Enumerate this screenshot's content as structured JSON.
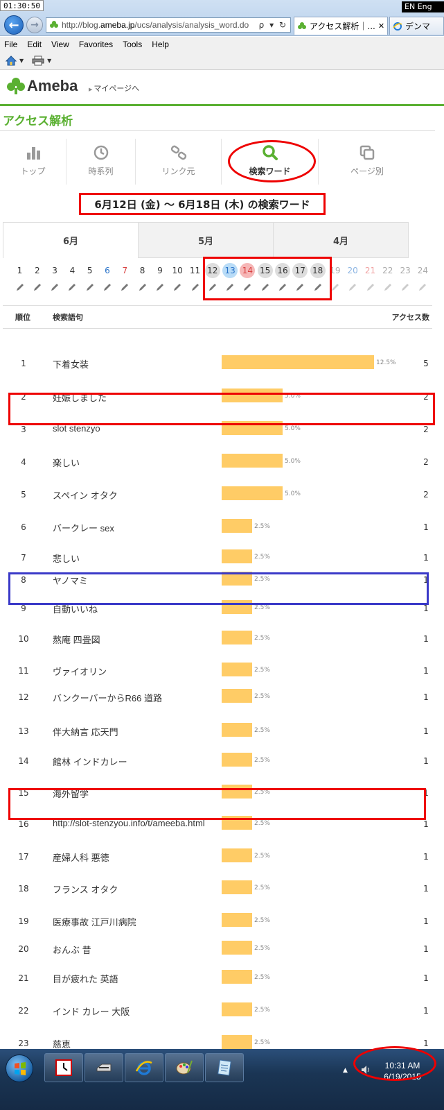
{
  "overlay": {
    "clock": "01:30:50",
    "language": "EN Eng"
  },
  "browser": {
    "address_prefix": "http://blog.",
    "address_domain": "ameba.jp",
    "address_path": "/ucs/analysis/analysis_word.do",
    "address_tools": "ρ ▾ ↻",
    "active_tab_label": "アクセス解析｜...",
    "active_tab_close": "✕",
    "second_tab_label": "デンマ",
    "menu": [
      "File",
      "Edit",
      "View",
      "Favorites",
      "Tools",
      "Help"
    ]
  },
  "header": {
    "logo_text": "Ameba",
    "mypage_label": "マイページへ"
  },
  "page": {
    "section_title": "アクセス解析",
    "tools": [
      {
        "label": "トップ",
        "icon": "bar-chart-icon",
        "active": false
      },
      {
        "label": "時系列",
        "icon": "clock-icon",
        "active": false
      },
      {
        "label": "リンク元",
        "icon": "link-icon",
        "active": false
      },
      {
        "label": "検索ワード",
        "icon": "search-icon",
        "active": true
      },
      {
        "label": "ページ別",
        "icon": "pages-icon",
        "active": false
      }
    ],
    "period_heading": "6月12日 (金) ～ 6月18日 (木) の検索ワード",
    "month_tabs": [
      "6月",
      "5月",
      "4月"
    ]
  },
  "days": [
    {
      "n": "1",
      "t": "n",
      "s": false,
      "f": false
    },
    {
      "n": "2",
      "t": "n",
      "s": false,
      "f": false
    },
    {
      "n": "3",
      "t": "n",
      "s": false,
      "f": false
    },
    {
      "n": "4",
      "t": "n",
      "s": false,
      "f": false
    },
    {
      "n": "5",
      "t": "n",
      "s": false,
      "f": false
    },
    {
      "n": "6",
      "t": "sat",
      "s": false,
      "f": false
    },
    {
      "n": "7",
      "t": "sun",
      "s": false,
      "f": false
    },
    {
      "n": "8",
      "t": "n",
      "s": false,
      "f": false
    },
    {
      "n": "9",
      "t": "n",
      "s": false,
      "f": false
    },
    {
      "n": "10",
      "t": "n",
      "s": false,
      "f": false
    },
    {
      "n": "11",
      "t": "n",
      "s": false,
      "f": false
    },
    {
      "n": "12",
      "t": "n",
      "s": true,
      "f": false
    },
    {
      "n": "13",
      "t": "sat",
      "s": true,
      "f": false
    },
    {
      "n": "14",
      "t": "sun",
      "s": true,
      "f": false
    },
    {
      "n": "15",
      "t": "n",
      "s": true,
      "f": false
    },
    {
      "n": "16",
      "t": "n",
      "s": true,
      "f": false
    },
    {
      "n": "17",
      "t": "n",
      "s": true,
      "f": false
    },
    {
      "n": "18",
      "t": "n",
      "s": true,
      "f": false
    },
    {
      "n": "19",
      "t": "n",
      "s": false,
      "f": true
    },
    {
      "n": "20",
      "t": "sat",
      "s": false,
      "f": true
    },
    {
      "n": "21",
      "t": "sun",
      "s": false,
      "f": true
    },
    {
      "n": "22",
      "t": "n",
      "s": false,
      "f": true
    },
    {
      "n": "23",
      "t": "n",
      "s": false,
      "f": true
    },
    {
      "n": "24",
      "t": "n",
      "s": false,
      "f": true
    }
  ],
  "table": {
    "headers": {
      "rank": "順位",
      "term": "検索語句",
      "count": "アクセス数"
    },
    "rows": [
      {
        "rank": "1",
        "term": "下着女装",
        "share": 12.5,
        "pct": "12.5%",
        "count": "5"
      },
      {
        "rank": "2",
        "term": "妊娠しました",
        "share": 5.0,
        "pct": "5.0%",
        "count": "2"
      },
      {
        "rank": "3",
        "term": "slot stenzyo",
        "share": 5.0,
        "pct": "5.0%",
        "count": "2"
      },
      {
        "rank": "4",
        "term": "楽しい",
        "share": 5.0,
        "pct": "5.0%",
        "count": "2"
      },
      {
        "rank": "5",
        "term": "スペイン オタク",
        "share": 5.0,
        "pct": "5.0%",
        "count": "2"
      },
      {
        "rank": "6",
        "term": "バークレー sex",
        "share": 2.5,
        "pct": "2.5%",
        "count": "1"
      },
      {
        "rank": "7",
        "term": "悲しい",
        "share": 2.5,
        "pct": "2.5%",
        "count": "1"
      },
      {
        "rank": "8",
        "term": "ヤノマミ",
        "share": 2.5,
        "pct": "2.5%",
        "count": "1"
      },
      {
        "rank": "9",
        "term": "自動いいね",
        "share": 2.5,
        "pct": "2.5%",
        "count": "1"
      },
      {
        "rank": "10",
        "term": "熬庵 四畳図",
        "share": 2.5,
        "pct": "2.5%",
        "count": "1"
      },
      {
        "rank": "11",
        "term": "ヴァイオリン",
        "share": 2.5,
        "pct": "2.5%",
        "count": "1"
      },
      {
        "rank": "12",
        "term": "バンクーバーからR66 道路",
        "share": 2.5,
        "pct": "2.5%",
        "count": "1"
      },
      {
        "rank": "13",
        "term": "伴大納言 応天門",
        "share": 2.5,
        "pct": "2.5%",
        "count": "1"
      },
      {
        "rank": "14",
        "term": "館林 インドカレー",
        "share": 2.5,
        "pct": "2.5%",
        "count": "1"
      },
      {
        "rank": "15",
        "term": "海外留学",
        "share": 2.5,
        "pct": "2.5%",
        "count": "1"
      },
      {
        "rank": "16",
        "term": "http://slot-stenzyou.info/t/ameeba.html",
        "share": 2.5,
        "pct": "2.5%",
        "count": "1"
      },
      {
        "rank": "17",
        "term": "産婦人科 悪徳",
        "share": 2.5,
        "pct": "2.5%",
        "count": "1"
      },
      {
        "rank": "18",
        "term": "フランス オタク",
        "share": 2.5,
        "pct": "2.5%",
        "count": "1"
      },
      {
        "rank": "19",
        "term": "医療事故 江戸川病院",
        "share": 2.5,
        "pct": "2.5%",
        "count": "1"
      },
      {
        "rank": "20",
        "term": "おんぶ 昔",
        "share": 2.5,
        "pct": "2.5%",
        "count": "1"
      },
      {
        "rank": "21",
        "term": "目が疲れた 英語",
        "share": 2.5,
        "pct": "2.5%",
        "count": "1"
      },
      {
        "rank": "22",
        "term": "インド カレー 大阪",
        "share": 2.5,
        "pct": "2.5%",
        "count": "1"
      },
      {
        "rank": "23",
        "term": "慈恵",
        "share": 2.5,
        "pct": "2.5%",
        "count": "1"
      }
    ]
  },
  "taskbar": {
    "time": "10:31 AM",
    "date": "6/19/2015"
  },
  "colors": {
    "ameba_green": "#5ab031",
    "bar_fill": "#ffcc66",
    "annotation_red": "#e00000",
    "annotation_blue": "#3a39c8"
  }
}
